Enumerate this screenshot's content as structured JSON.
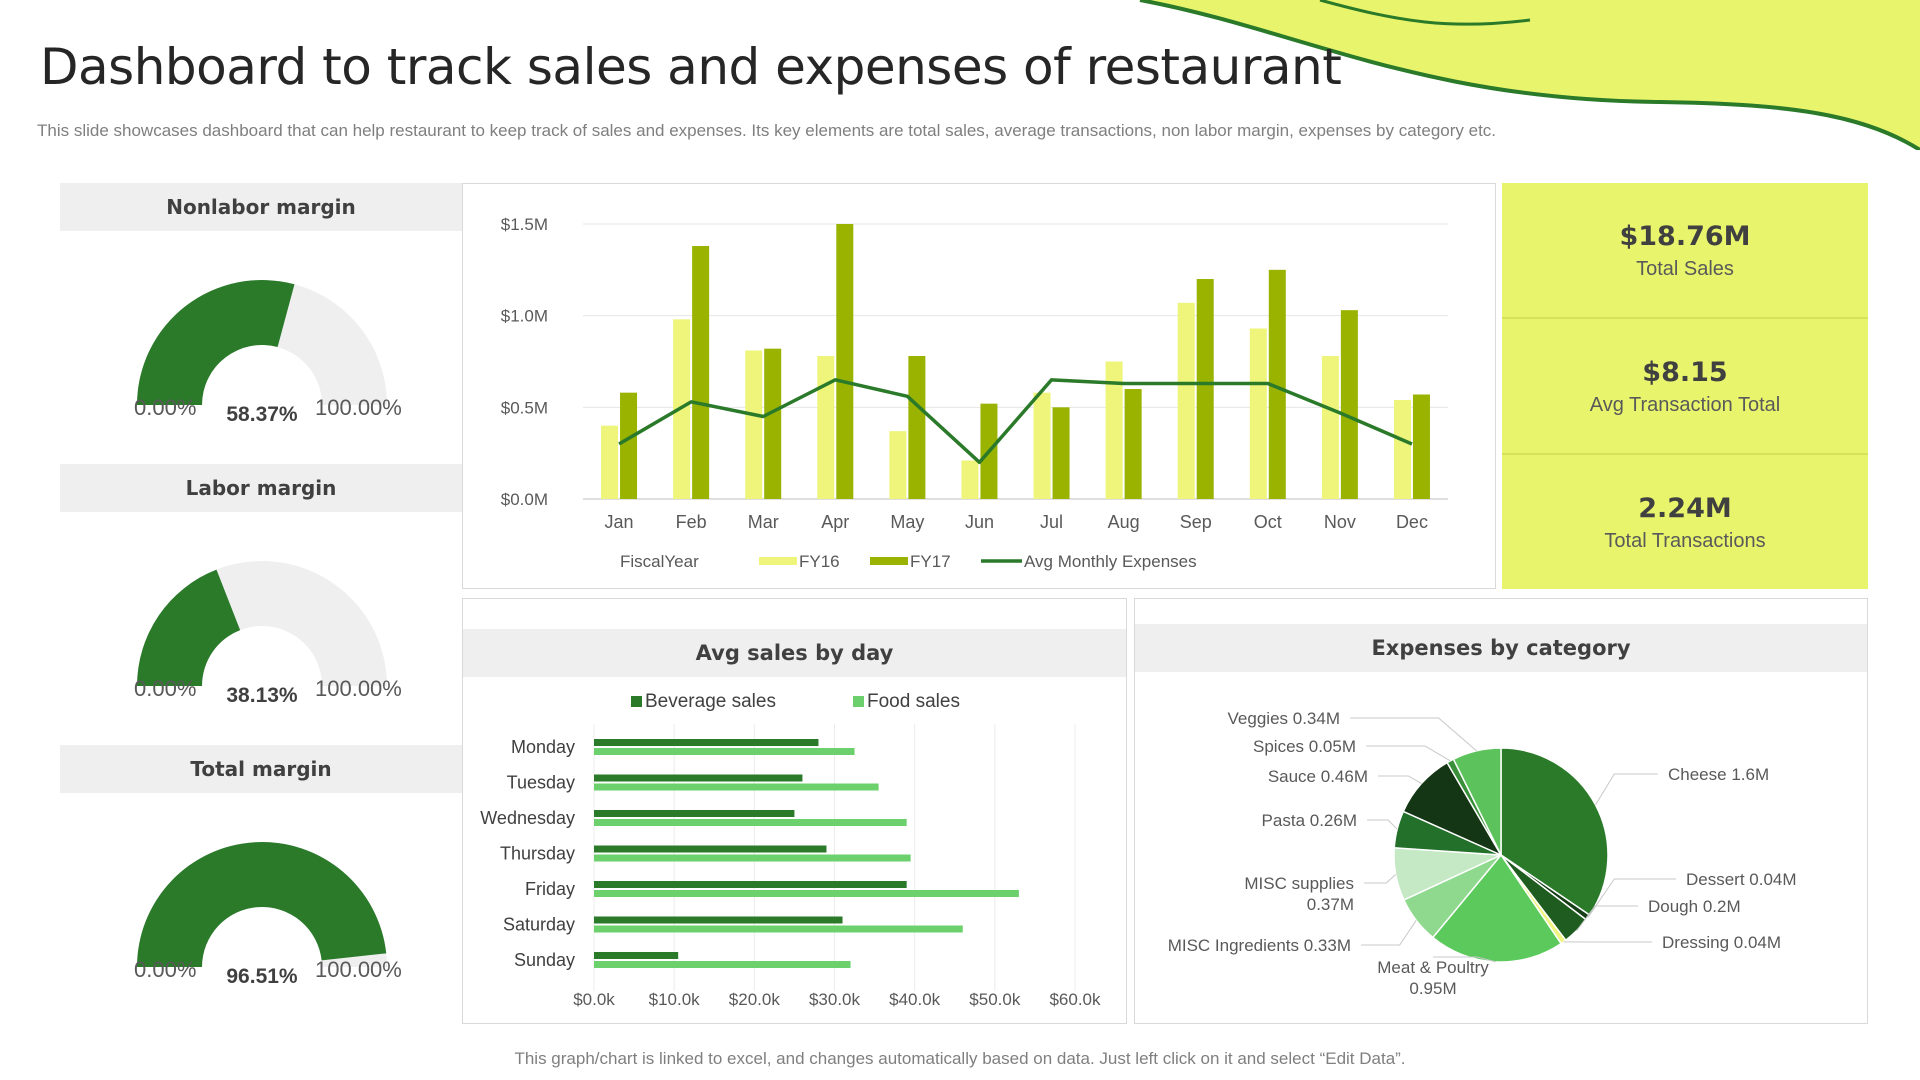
{
  "page": {
    "title": "Dashboard to track sales and expenses of restaurant",
    "subtitle": "This slide showcases dashboard that can help restaurant to keep track of sales and expenses. Its key elements are total sales, average transactions, non labor margin, expenses by category etc.",
    "footer": "This graph/chart is linked to excel, and changes automatically based on data. Just left click on it and select “Edit Data”."
  },
  "colors": {
    "dark_green": "#2a7a2a",
    "olive": "#99b300",
    "light_lime": "#eef57a",
    "gauge_bg": "#efefef",
    "kpi_bg": "#e8f56c"
  },
  "gauges": [
    {
      "title": "Nonlabor margin",
      "value": 58.37,
      "value_label": "58.37%",
      "min_label": "0.00%",
      "max_label": "100.00%"
    },
    {
      "title": "Labor margin",
      "value": 38.13,
      "value_label": "38.13%",
      "min_label": "0.00%",
      "max_label": "100.00%"
    },
    {
      "title": "Total margin",
      "value": 96.51,
      "value_label": "96.51%",
      "min_label": "0.00%",
      "max_label": "100.00%"
    }
  ],
  "kpis": [
    {
      "value": "$18.76M",
      "label": "Total Sales"
    },
    {
      "value": "$8.15",
      "label": "Avg Transaction Total"
    },
    {
      "value": "2.24M",
      "label": "Total Transactions"
    }
  ],
  "chart_data": [
    {
      "type": "bar",
      "title": "",
      "categories": [
        "Jan",
        "Feb",
        "Mar",
        "Apr",
        "May",
        "Jun",
        "Jul",
        "Aug",
        "Sep",
        "Oct",
        "Nov",
        "Dec"
      ],
      "series": [
        {
          "name": "FY16",
          "kind": "bar",
          "values": [
            0.4,
            0.98,
            0.81,
            0.78,
            0.37,
            0.21,
            0.58,
            0.75,
            1.07,
            0.93,
            0.78,
            0.54
          ]
        },
        {
          "name": "FY17",
          "kind": "bar",
          "values": [
            0.58,
            1.38,
            0.82,
            1.5,
            0.78,
            0.52,
            0.5,
            0.6,
            1.2,
            1.25,
            1.03,
            0.57
          ]
        },
        {
          "name": "Avg Monthly Expenses",
          "kind": "line",
          "values": [
            0.3,
            0.53,
            0.45,
            0.65,
            0.56,
            0.2,
            0.65,
            0.63,
            0.63,
            0.63,
            0.47,
            0.3
          ]
        }
      ],
      "legend_title": "FiscalYear",
      "yticks": [
        "$0.0M",
        "$0.5M",
        "$1.0M",
        "$1.5M"
      ],
      "ylim": [
        0,
        1.5
      ],
      "legend": "bottom",
      "grid": true
    },
    {
      "type": "bar",
      "orientation": "horizontal",
      "title": "Avg sales by day",
      "categories": [
        "Monday",
        "Tuesday",
        "Wednesday",
        "Thursday",
        "Friday",
        "Saturday",
        "Sunday"
      ],
      "series": [
        {
          "name": "Beverage sales",
          "values": [
            28,
            26,
            25,
            29,
            39,
            31,
            10.5
          ]
        },
        {
          "name": "Food sales",
          "values": [
            32.5,
            35.5,
            39,
            39.5,
            53,
            46,
            32
          ]
        }
      ],
      "xticks": [
        "$0.0k",
        "$10.0k",
        "$20.0k",
        "$30.0k",
        "$40.0k",
        "$50.0k",
        "$60.0k"
      ],
      "xlim": [
        0,
        60
      ],
      "legend": "top",
      "grid": true
    },
    {
      "type": "pie",
      "title": "Expenses by category",
      "slices": [
        {
          "name": "Cheese",
          "value": 1.6,
          "label": "Cheese 1.6M",
          "color": "#2a7a2a"
        },
        {
          "name": "Dessert",
          "value": 0.04,
          "label": "Dessert 0.04M",
          "color": "#173f17"
        },
        {
          "name": "Dough",
          "value": 0.2,
          "label": "Dough 0.2M",
          "color": "#1f5c1f"
        },
        {
          "name": "Dressing",
          "value": 0.04,
          "label": "Dressing 0.04M",
          "color": "#f0f580"
        },
        {
          "name": "Meat & Poultry",
          "value": 0.95,
          "label": "Meat & Poultry 0.95M",
          "color": "#5bc95b"
        },
        {
          "name": "MISC Ingredients",
          "value": 0.33,
          "label": "MISC Ingredients 0.33M",
          "color": "#8ed98e"
        },
        {
          "name": "MISC supplies",
          "value": 0.37,
          "label": "MISC supplies 0.37M",
          "color": "#c4e9c4"
        },
        {
          "name": "Pasta",
          "value": 0.26,
          "label": "Pasta 0.26M",
          "color": "#23702a"
        },
        {
          "name": "Sauce",
          "value": 0.46,
          "label": "Sauce 0.46M",
          "color": "#143614"
        },
        {
          "name": "Spices",
          "value": 0.05,
          "label": "Spices 0.05M",
          "color": "#3a8f3a"
        },
        {
          "name": "Veggies",
          "value": 0.34,
          "label": "Veggies 0.34M",
          "color": "#5cc35c"
        }
      ]
    }
  ]
}
